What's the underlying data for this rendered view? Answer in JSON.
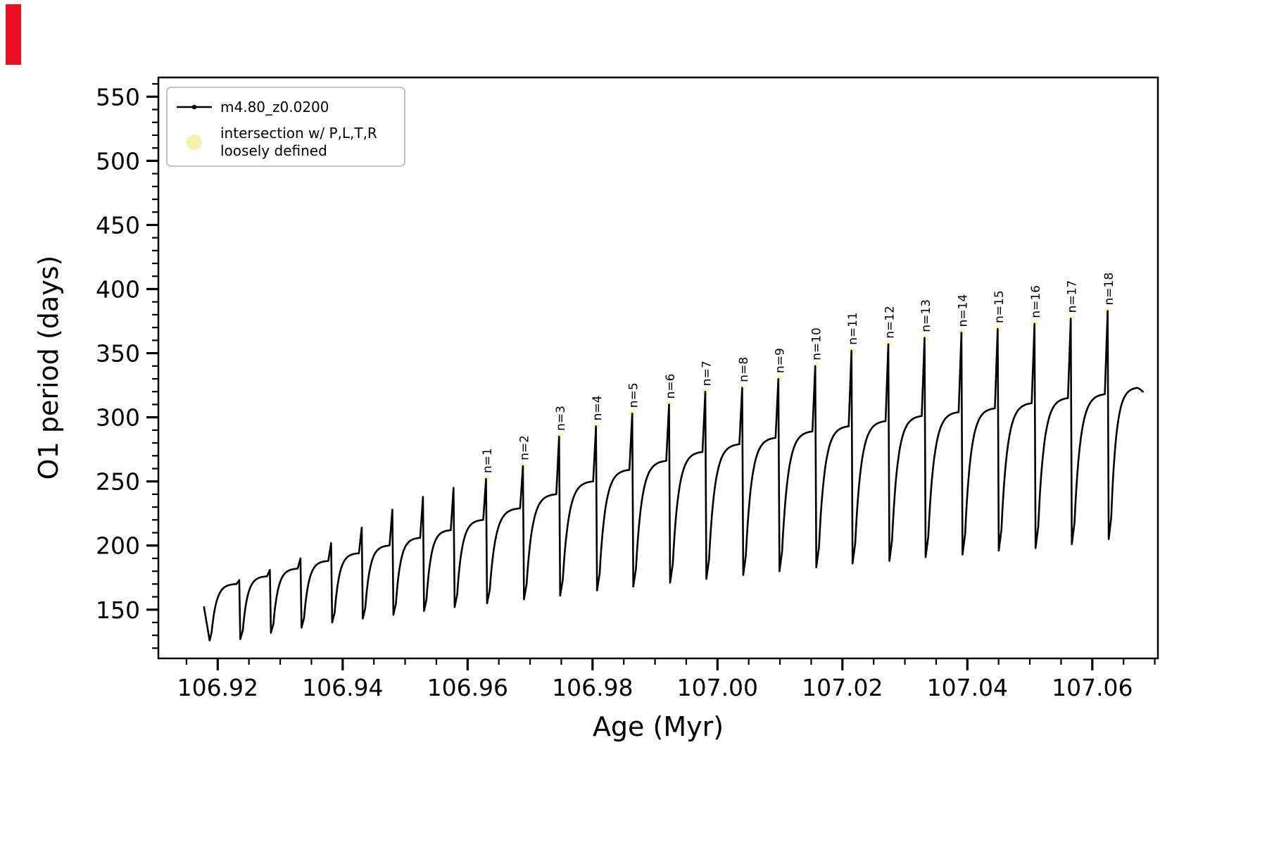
{
  "figure": {
    "background": "#ffffff",
    "line_color": "#000000",
    "intersection_color": "#f6f1b3",
    "corner_marker_color": "#e81123"
  },
  "axes": {
    "xlabel": "Age (Myr)",
    "ylabel": "O1 period (days)",
    "xlim": [
      106.9105,
      107.0705
    ],
    "ylim": [
      112,
      565
    ],
    "x_ticks": [
      106.92,
      106.94,
      106.96,
      106.98,
      107.0,
      107.02,
      107.04,
      107.06
    ],
    "x_tick_labels": [
      "106.92",
      "106.94",
      "106.96",
      "106.98",
      "107.00",
      "107.02",
      "107.04",
      "107.06"
    ],
    "y_ticks": [
      150,
      200,
      250,
      300,
      350,
      400,
      450,
      500,
      550
    ],
    "y_tick_labels": [
      "150",
      "200",
      "250",
      "300",
      "350",
      "400",
      "450",
      "500",
      "550"
    ],
    "x_minor_step": 0.005,
    "y_minor_step": 10,
    "grid": false
  },
  "legend": {
    "position": "upper-left",
    "entries": [
      {
        "marker": "line-dot",
        "color": "#000000",
        "lines": [
          "m4.80_z0.0200"
        ]
      },
      {
        "marker": "dot",
        "color": "#f6f1b3",
        "lines": [
          "intersection w/ P,L,T,R",
          "loosely defined"
        ]
      }
    ]
  },
  "chart_data": {
    "type": "line",
    "title": "",
    "xlabel": "Age (Myr)",
    "ylabel": "O1 period (days)",
    "xlim": [
      106.9105,
      107.0705
    ],
    "ylim": [
      112,
      565
    ],
    "series_label": "m4.80_z0.0200",
    "description": "Sawtooth oscillation of O1 period vs age: each pulse rises steeply from a minimum to a slowly rising plateau, spikes sharply upward, then drops to the next minimum. Spikes n=1..18 are annotated.",
    "start": {
      "x": 106.9178,
      "value": 152,
      "dip_x": 106.9187,
      "dip": 126
    },
    "pulses": [
      {
        "x": 106.9235,
        "top": 170,
        "spike": 173,
        "min_after": 127,
        "label": null
      },
      {
        "x": 106.9284,
        "top": 176,
        "spike": 181,
        "min_after": 132,
        "label": null
      },
      {
        "x": 106.9333,
        "top": 182,
        "spike": 190,
        "min_after": 136,
        "label": null
      },
      {
        "x": 106.9382,
        "top": 188,
        "spike": 202,
        "min_after": 140,
        "label": null
      },
      {
        "x": 106.9431,
        "top": 194,
        "spike": 214,
        "min_after": 143,
        "label": null
      },
      {
        "x": 106.948,
        "top": 200,
        "spike": 228,
        "min_after": 146,
        "label": null
      },
      {
        "x": 106.9529,
        "top": 206,
        "spike": 238,
        "min_after": 149,
        "label": null
      },
      {
        "x": 106.9578,
        "top": 212,
        "spike": 245,
        "min_after": 152,
        "label": null
      },
      {
        "x": 106.963,
        "top": 220,
        "spike": 252,
        "min_after": 155,
        "label": "n=1"
      },
      {
        "x": 106.9689,
        "top": 229,
        "spike": 262,
        "min_after": 158,
        "label": "n=2"
      },
      {
        "x": 106.9747,
        "top": 240,
        "spike": 285,
        "min_after": 161,
        "label": "n=3"
      },
      {
        "x": 106.9806,
        "top": 250,
        "spike": 293,
        "min_after": 165,
        "label": "n=4"
      },
      {
        "x": 106.9864,
        "top": 259,
        "spike": 303,
        "min_after": 168,
        "label": "n=5"
      },
      {
        "x": 106.9923,
        "top": 266,
        "spike": 310,
        "min_after": 171,
        "label": "n=6"
      },
      {
        "x": 106.9981,
        "top": 273,
        "spike": 320,
        "min_after": 174,
        "label": "n=7"
      },
      {
        "x": 107.004,
        "top": 279,
        "spike": 323,
        "min_after": 177,
        "label": "n=8"
      },
      {
        "x": 107.0098,
        "top": 284,
        "spike": 330,
        "min_after": 180,
        "label": "n=9"
      },
      {
        "x": 107.0157,
        "top": 289,
        "spike": 340,
        "min_after": 183,
        "label": "n=10"
      },
      {
        "x": 107.0215,
        "top": 293,
        "spike": 352,
        "min_after": 186,
        "label": "n=11"
      },
      {
        "x": 107.0274,
        "top": 297,
        "spike": 357,
        "min_after": 188,
        "label": "n=12"
      },
      {
        "x": 107.0332,
        "top": 301,
        "spike": 362,
        "min_after": 191,
        "label": "n=13"
      },
      {
        "x": 107.0391,
        "top": 304,
        "spike": 366,
        "min_after": 193,
        "label": "n=14"
      },
      {
        "x": 107.0449,
        "top": 307,
        "spike": 369,
        "min_after": 196,
        "label": "n=15"
      },
      {
        "x": 107.0508,
        "top": 311,
        "spike": 373,
        "min_after": 198,
        "label": "n=16"
      },
      {
        "x": 107.0566,
        "top": 315,
        "spike": 377,
        "min_after": 201,
        "label": "n=17"
      },
      {
        "x": 107.0625,
        "top": 318,
        "spike": 383,
        "min_after": 205,
        "label": "n=18"
      }
    ],
    "terminal": {
      "x_end": 107.0672,
      "top": 323,
      "tail": [
        [
          107.0676,
          322
        ],
        [
          107.0681,
          320
        ]
      ]
    }
  }
}
